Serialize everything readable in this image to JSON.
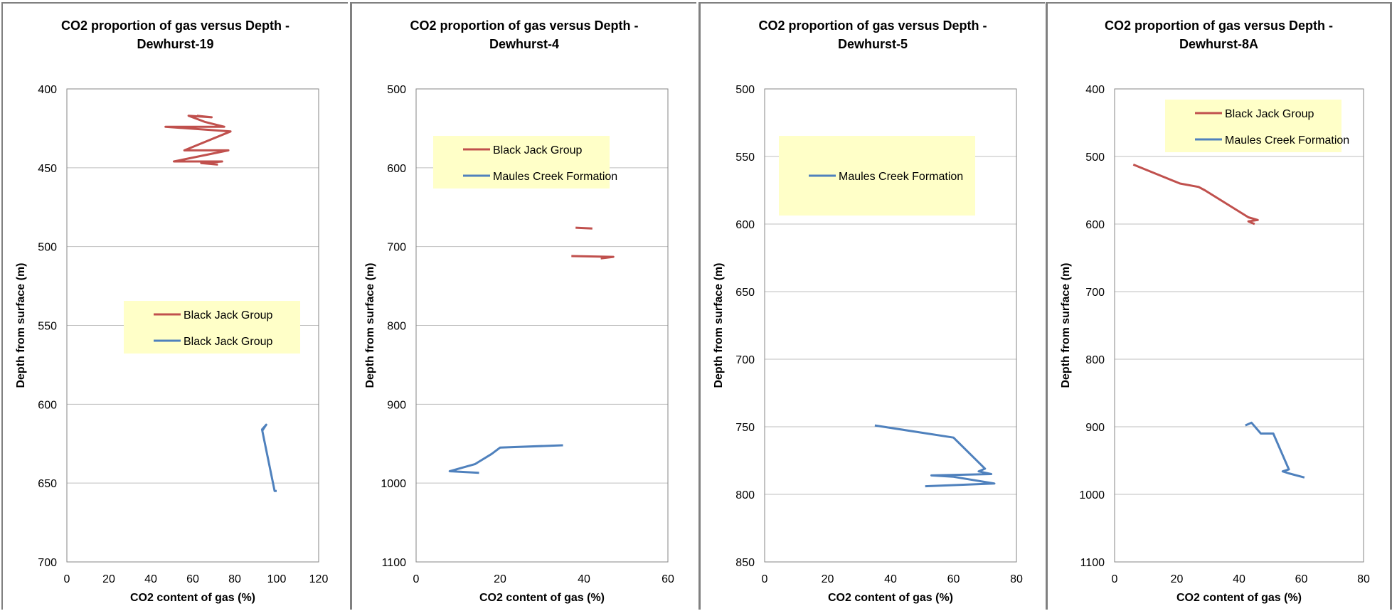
{
  "colors": {
    "red": "#c0504d",
    "blue": "#4f81bd",
    "legend_bg": "#ffffc8",
    "grid": "#bfbfbf",
    "axis": "#868686",
    "border": "#808080"
  },
  "chart_data": [
    {
      "type": "line",
      "title": [
        "CO2 proportion of gas versus Depth -",
        "Dewhurst-19"
      ],
      "xlabel": "CO2 content of gas (%)",
      "ylabel": "Depth from surface (m)",
      "xlim": [
        0,
        120
      ],
      "xticks": [
        0,
        20,
        40,
        60,
        80,
        100,
        120
      ],
      "ylim": [
        400,
        700
      ],
      "yticks": [
        400,
        450,
        500,
        550,
        600,
        650,
        700
      ],
      "y_reversed": true,
      "grid": "horizontal",
      "legend": "middle-right",
      "series": [
        {
          "name": "Black Jack Group",
          "color": "red",
          "points": [
            [
              62,
              417
            ],
            [
              69,
              418
            ],
            [
              58,
              417
            ],
            [
              66,
              421
            ],
            [
              75,
              424
            ],
            [
              47,
              424
            ],
            [
              78,
              427
            ],
            [
              56,
              439
            ],
            [
              77,
              439
            ],
            [
              51,
              446
            ],
            [
              74,
              446
            ],
            [
              64,
              447
            ],
            [
              72,
              448
            ]
          ]
        },
        {
          "name": "Black Jack Group",
          "color": "blue",
          "points": [
            [
              93,
              617
            ],
            [
              95,
              613
            ],
            [
              93,
              616
            ],
            [
              99,
              655
            ],
            [
              100,
              655
            ]
          ]
        }
      ]
    },
    {
      "type": "line",
      "title": [
        "CO2 proportion of gas versus Depth -",
        "Dewhurst-4"
      ],
      "xlabel": "CO2 content of gas (%)",
      "ylabel": "Depth from surface (m)",
      "xlim": [
        0,
        60
      ],
      "xticks": [
        0,
        20,
        40,
        60
      ],
      "ylim": [
        500,
        1100
      ],
      "yticks": [
        500,
        600,
        700,
        800,
        900,
        1000,
        1100
      ],
      "y_reversed": true,
      "grid": "horizontal",
      "legend": "top-right",
      "series": [
        {
          "name": "Black Jack Group",
          "color": "red",
          "points": [
            [
              38,
              676
            ],
            [
              42,
              677
            ],
            [
              null,
              null
            ],
            [
              37,
              712
            ],
            [
              47,
              713
            ],
            [
              44,
              715
            ]
          ]
        },
        {
          "name": "Maules Creek Formation",
          "color": "blue",
          "points": [
            [
              35,
              952
            ],
            [
              20,
              955
            ],
            [
              18,
              963
            ],
            [
              14,
              976
            ],
            [
              8,
              985
            ],
            [
              15,
              987
            ]
          ]
        }
      ]
    },
    {
      "type": "line",
      "title": [
        "CO2 proportion of gas versus Depth -",
        "Dewhurst-5"
      ],
      "xlabel": "CO2 content of gas (%)",
      "ylabel": "Depth from surface (m)",
      "xlim": [
        0,
        80
      ],
      "xticks": [
        0,
        20,
        40,
        60,
        80
      ],
      "ylim": [
        500,
        850
      ],
      "yticks": [
        500,
        550,
        600,
        650,
        700,
        750,
        800,
        850
      ],
      "y_reversed": true,
      "grid": "horizontal",
      "legend": "top-center",
      "series": [
        {
          "name": "Maules Creek Formation",
          "color": "blue",
          "points": [
            [
              35,
              749
            ],
            [
              60,
              758
            ],
            [
              70,
              781
            ],
            [
              68,
              783
            ],
            [
              72,
              785
            ],
            [
              53,
              786
            ],
            [
              60,
              787
            ],
            [
              73,
              792
            ],
            [
              51,
              794
            ]
          ]
        }
      ]
    },
    {
      "type": "line",
      "title": [
        "CO2 proportion of gas versus Depth -",
        "Dewhurst-8A"
      ],
      "xlabel": "CO2 content of gas (%)",
      "ylabel": "Depth from surface (m)",
      "xlim": [
        0,
        80
      ],
      "xticks": [
        0,
        20,
        40,
        60,
        80
      ],
      "ylim": [
        400,
        1100
      ],
      "yticks": [
        400,
        500,
        600,
        700,
        800,
        900,
        1000,
        1100
      ],
      "y_reversed": true,
      "grid": "horizontal",
      "legend": "top-right",
      "series": [
        {
          "name": "Black Jack Group",
          "color": "red",
          "points": [
            [
              6,
              512
            ],
            [
              21,
              540
            ],
            [
              27,
              545
            ],
            [
              29,
              550
            ],
            [
              43,
              590
            ],
            [
              46,
              594
            ],
            [
              43,
              596
            ],
            [
              45,
              600
            ]
          ]
        },
        {
          "name": "Maules Creek Formation",
          "color": "blue",
          "points": [
            [
              42,
              898
            ],
            [
              44,
              894
            ],
            [
              47,
              910
            ],
            [
              51,
              910
            ],
            [
              56,
              963
            ],
            [
              54,
              966
            ],
            [
              56,
              969
            ],
            [
              61,
              975
            ]
          ]
        }
      ]
    }
  ]
}
